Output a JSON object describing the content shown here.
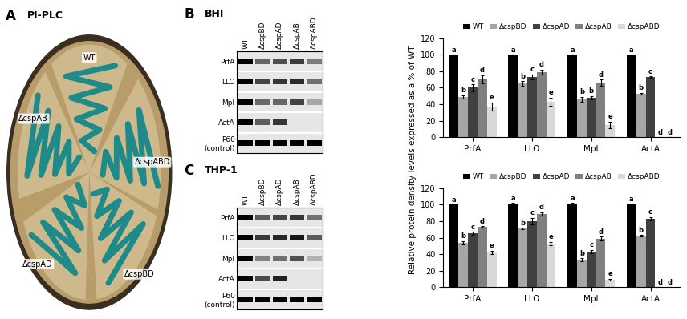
{
  "panel_a": {
    "label": "A",
    "title": "PI-PLC",
    "strains": [
      "WT",
      "ΔcspABD",
      "ΔcspBD",
      "ΔcspAD",
      "ΔcspAB"
    ]
  },
  "y_label": "Relative protein density levels expressed as a % of WT",
  "blot_rows": [
    "PrfA",
    "LLO",
    "Mpl",
    "ActA",
    "P60\n(control)"
  ],
  "blot_lanes": [
    "WT",
    "ΔcspBD",
    "ΔcspAD",
    "ΔcspAB",
    "ΔcspABD"
  ],
  "chart_data": [
    {
      "label": "B",
      "title": "BHI",
      "type": "bar",
      "categories": [
        "PrfA",
        "LLO",
        "Mpl",
        "ActA"
      ],
      "ylim": [
        0,
        120
      ],
      "yticks": [
        0,
        20,
        40,
        60,
        80,
        100,
        120
      ],
      "grid": false,
      "legend": "top",
      "series": [
        {
          "name": "WT",
          "color": "#000000",
          "values": [
            100,
            100,
            100,
            100
          ],
          "errors": [
            0,
            0,
            0,
            0
          ],
          "significance": [
            "a",
            "a",
            "a",
            "a"
          ]
        },
        {
          "name": "ΔcspBD",
          "color": "#a6a6a6",
          "values": [
            49,
            65,
            46,
            53
          ],
          "errors": [
            2,
            3,
            3,
            1
          ],
          "significance": [
            "b",
            "b",
            "b",
            "b"
          ]
        },
        {
          "name": "ΔcspAD",
          "color": "#404040",
          "values": [
            60,
            73,
            48,
            73
          ],
          "errors": [
            4,
            3,
            2,
            1
          ],
          "significance": [
            "c",
            "c",
            "b",
            "c"
          ]
        },
        {
          "name": "ΔcspAB",
          "color": "#808080",
          "values": [
            70,
            79,
            66,
            0
          ],
          "errors": [
            5,
            3,
            4,
            0
          ],
          "significance": [
            "d",
            "d",
            "d",
            "d"
          ]
        },
        {
          "name": "ΔcspABD",
          "color": "#d9d9d9",
          "values": [
            37,
            43,
            15,
            0
          ],
          "errors": [
            5,
            5,
            4,
            0
          ],
          "significance": [
            "e",
            "e",
            "e",
            "d"
          ]
        }
      ]
    },
    {
      "label": "C",
      "title": "THP-1",
      "type": "bar",
      "categories": [
        "PrfA",
        "LLO",
        "Mpl",
        "ActA"
      ],
      "ylim": [
        0,
        120
      ],
      "yticks": [
        0,
        20,
        40,
        60,
        80,
        100,
        120
      ],
      "grid": false,
      "legend": "top",
      "series": [
        {
          "name": "WT",
          "color": "#000000",
          "values": [
            100,
            100,
            100,
            100
          ],
          "errors": [
            0,
            2,
            2,
            1
          ],
          "significance": [
            "a",
            "a",
            "a",
            "a"
          ]
        },
        {
          "name": "ΔcspBD",
          "color": "#a6a6a6",
          "values": [
            54,
            71,
            33,
            62
          ],
          "errors": [
            2,
            1,
            2,
            1
          ],
          "significance": [
            "b",
            "b",
            "b",
            "b"
          ]
        },
        {
          "name": "ΔcspAD",
          "color": "#404040",
          "values": [
            65,
            80,
            43,
            83
          ],
          "errors": [
            2,
            4,
            2,
            2
          ],
          "significance": [
            "c",
            "c",
            "c",
            "c"
          ]
        },
        {
          "name": "ΔcspAB",
          "color": "#808080",
          "values": [
            73,
            89,
            59,
            0
          ],
          "errors": [
            1,
            2,
            2,
            0
          ],
          "significance": [
            "d",
            "d",
            "d",
            "d"
          ]
        },
        {
          "name": "ΔcspABD",
          "color": "#d9d9d9",
          "values": [
            42,
            53,
            9,
            0
          ],
          "errors": [
            2,
            2,
            1,
            0
          ],
          "significance": [
            "e",
            "e",
            "e",
            "d"
          ]
        }
      ]
    }
  ]
}
